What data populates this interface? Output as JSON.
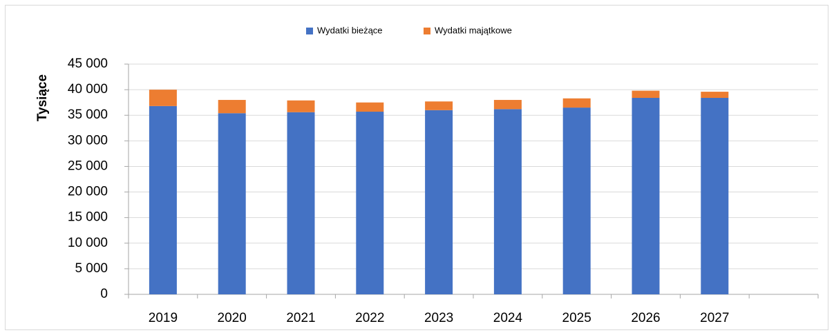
{
  "chart_data": {
    "type": "stacked_bar",
    "y_label": "Tysiące",
    "categories": [
      "2019",
      "2020",
      "2021",
      "2022",
      "2023",
      "2024",
      "2025",
      "2026",
      "2027",
      null
    ],
    "series": [
      {
        "name": "Wydatki bieżące",
        "color": "#4472c4",
        "values": [
          36800,
          35400,
          35600,
          35700,
          36000,
          36200,
          36500,
          38400,
          38400,
          null
        ]
      },
      {
        "name": "Wydatki majątkowe",
        "color": "#ed7d31",
        "values": [
          3200,
          2600,
          2300,
          1800,
          1700,
          1800,
          1800,
          1400,
          1200,
          null
        ]
      }
    ],
    "ylim": [
      0,
      45000
    ],
    "yticks": [
      0,
      {
        "value": 5000,
        "label": "5 000"
      },
      {
        "value": 10000,
        "label": "10 000"
      },
      {
        "value": 15000,
        "label": "15 000"
      },
      {
        "value": 20000,
        "label": "20 000"
      },
      {
        "value": 25000,
        "label": "25 000"
      },
      {
        "value": 30000,
        "label": "30 000"
      },
      {
        "value": 35000,
        "label": "35 000"
      },
      {
        "value": 40000,
        "label": "40 000"
      },
      {
        "value": 45000,
        "label": "45 000"
      }
    ],
    "grid": true,
    "legend": "top"
  }
}
